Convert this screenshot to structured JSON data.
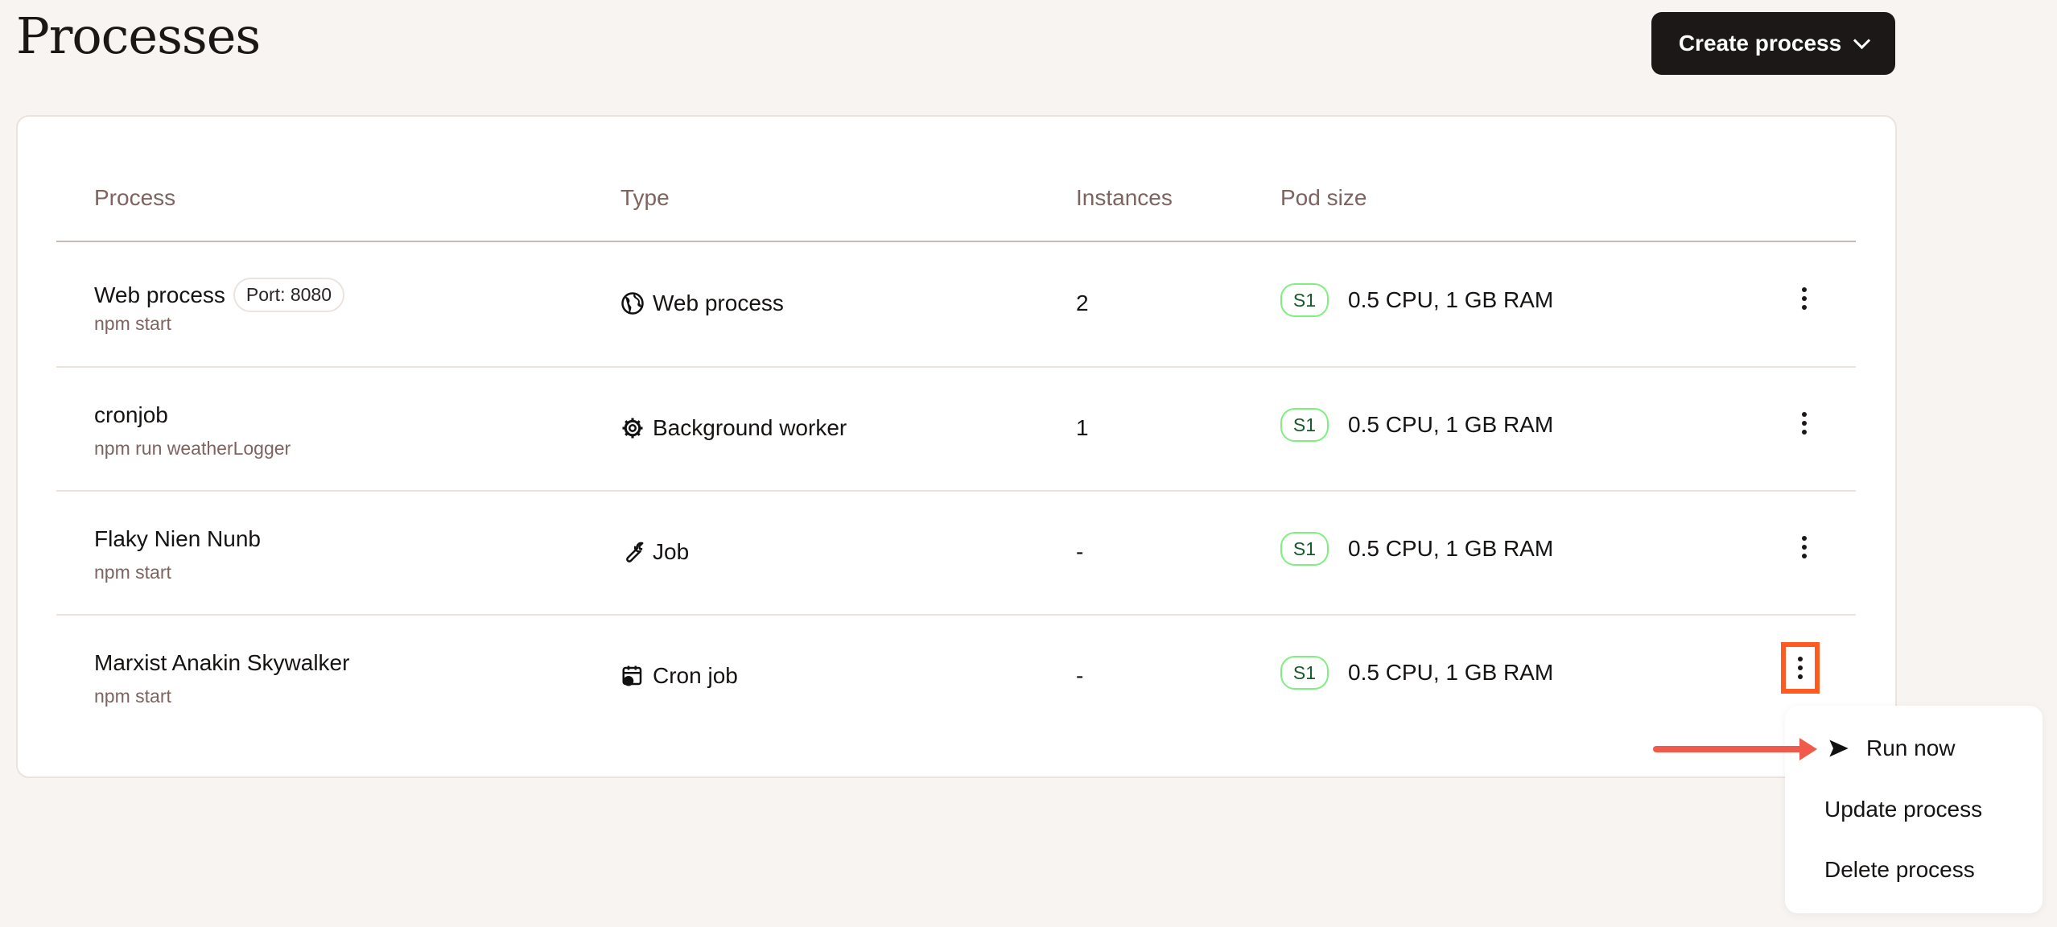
{
  "page": {
    "title": "Processes"
  },
  "toolbar": {
    "create_label": "Create process"
  },
  "table": {
    "headers": [
      "Process",
      "Type",
      "Instances",
      "Pod size"
    ],
    "rows": [
      {
        "name": "Web process",
        "port": "Port: 8080",
        "command": "npm start",
        "type": "Web process",
        "type_icon": "globe-icon",
        "instances": "2",
        "pod_badge": "S1",
        "pod_size": "0.5 CPU, 1 GB RAM"
      },
      {
        "name": "cronjob",
        "command": "npm run weatherLogger",
        "type": "Background worker",
        "type_icon": "gear-icon",
        "instances": "1",
        "pod_badge": "S1",
        "pod_size": "0.5 CPU, 1 GB RAM"
      },
      {
        "name": "Flaky Nien Nunb",
        "command": "npm start",
        "type": "Job",
        "type_icon": "wrench-icon",
        "instances": "-",
        "pod_badge": "S1",
        "pod_size": "0.5 CPU, 1 GB RAM"
      },
      {
        "name": "Marxist Anakin Skywalker",
        "command": "npm start",
        "type": "Cron job",
        "type_icon": "calendar-clock-icon",
        "instances": "-",
        "pod_badge": "S1",
        "pod_size": "0.5 CPU, 1 GB RAM"
      }
    ]
  },
  "menu": {
    "items": [
      {
        "label": "Run now",
        "icon": "send-icon"
      },
      {
        "label": "Update process"
      },
      {
        "label": "Delete process"
      }
    ]
  },
  "colors": {
    "highlight": "#ff5a1f",
    "annotation_arrow": "#f05a4a",
    "badge_border": "#7ef07e"
  }
}
